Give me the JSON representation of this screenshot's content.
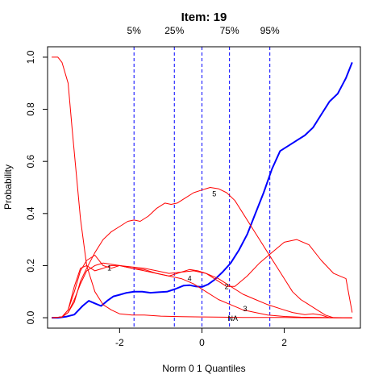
{
  "chart_data": {
    "type": "line",
    "title": "Item:  19",
    "xlabel": "Norm 0 1 Quantiles",
    "ylabel": "Probability",
    "xlim": [
      -3.75,
      3.85
    ],
    "ylim": [
      -0.04,
      1.04
    ],
    "xticks": [
      -2,
      0,
      2
    ],
    "xtick_labels": [
      "-2",
      "0",
      "2"
    ],
    "yticks": [
      0.0,
      0.2,
      0.4,
      0.6,
      0.8,
      1.0
    ],
    "ytick_labels": [
      "0.0",
      "0.2",
      "0.4",
      "0.6",
      "0.8",
      "1.0"
    ],
    "grid": false,
    "quantile_lines": [
      {
        "label": "5%",
        "x": -1.65
      },
      {
        "label": "25%",
        "x": -0.67
      },
      {
        "label": "",
        "x": 0.0
      },
      {
        "label": "75%",
        "x": 0.67
      },
      {
        "label": "95%",
        "x": 1.65
      }
    ],
    "colors": {
      "correct": "#0000ff",
      "distractor": "#ff0000",
      "quantile": "#0000ff"
    },
    "series": [
      {
        "label": "",
        "kind": "correct",
        "x": [
          -3.65,
          -3.5,
          -3.3,
          -3.1,
          -2.9,
          -2.75,
          -2.6,
          -2.45,
          -2.3,
          -2.15,
          -2.0,
          -1.85,
          -1.65,
          -1.45,
          -1.25,
          -1.05,
          -0.85,
          -0.65,
          -0.45,
          -0.3,
          -0.15,
          0.0,
          0.15,
          0.3,
          0.5,
          0.7,
          0.9,
          1.1,
          1.3,
          1.5,
          1.7,
          1.9,
          2.1,
          2.3,
          2.5,
          2.7,
          2.9,
          3.1,
          3.3,
          3.5,
          3.65
        ],
        "y": [
          0.0,
          0.0,
          0.004,
          0.012,
          0.045,
          0.065,
          0.055,
          0.045,
          0.065,
          0.082,
          0.088,
          0.095,
          0.1,
          0.1,
          0.096,
          0.098,
          0.1,
          0.11,
          0.123,
          0.125,
          0.12,
          0.118,
          0.128,
          0.145,
          0.175,
          0.21,
          0.26,
          0.32,
          0.4,
          0.48,
          0.57,
          0.64,
          0.66,
          0.68,
          0.7,
          0.73,
          0.78,
          0.83,
          0.86,
          0.92,
          0.98
        ]
      },
      {
        "label": "",
        "kind": "distractor",
        "x": [
          -3.65,
          -3.5,
          -3.4,
          -3.25,
          -3.15,
          -3.05,
          -2.95,
          -2.8,
          -2.6,
          -2.4,
          -2.2,
          -2.0,
          -1.7,
          -1.4,
          -1.0,
          -0.5,
          0.0,
          0.5,
          1.0,
          1.5,
          2.0,
          2.5,
          3.0,
          3.65
        ],
        "y": [
          1.0,
          1.0,
          0.98,
          0.9,
          0.72,
          0.55,
          0.38,
          0.2,
          0.1,
          0.05,
          0.03,
          0.015,
          0.01,
          0.01,
          0.006,
          0.004,
          0.003,
          0.002,
          0.001,
          0.001,
          0.001,
          0.0,
          0.0,
          0.0
        ]
      },
      {
        "label": "1",
        "kind": "distractor",
        "x": [
          -3.65,
          -3.4,
          -3.25,
          -3.1,
          -2.95,
          -2.8,
          -2.6,
          -2.4,
          -2.2,
          -2.0,
          -1.7,
          -1.4,
          -1.1,
          -0.8,
          -0.5,
          -0.2,
          0.1,
          0.4,
          0.7,
          1.0,
          1.3,
          1.6,
          2.0,
          2.4,
          3.0,
          3.65
        ],
        "y": [
          0.0,
          0.003,
          0.03,
          0.1,
          0.18,
          0.22,
          0.24,
          0.2,
          0.19,
          0.2,
          0.19,
          0.18,
          0.17,
          0.16,
          0.15,
          0.13,
          0.1,
          0.07,
          0.05,
          0.03,
          0.02,
          0.01,
          0.005,
          0.002,
          0.001,
          0.0
        ]
      },
      {
        "label": "2",
        "kind": "distractor",
        "x": [
          -3.65,
          -3.4,
          -3.25,
          -3.1,
          -2.95,
          -2.8,
          -2.6,
          -2.4,
          -2.2,
          -2.0,
          -1.7,
          -1.4,
          -1.1,
          -0.8,
          -0.5,
          -0.3,
          -0.1,
          0.1,
          0.3,
          0.6,
          0.8,
          1.1,
          1.4,
          1.7,
          2.0,
          2.3,
          2.6,
          2.9,
          3.2,
          3.5,
          3.65
        ],
        "y": [
          0.0,
          0.003,
          0.03,
          0.12,
          0.19,
          0.2,
          0.18,
          0.19,
          0.2,
          0.2,
          0.19,
          0.185,
          0.17,
          0.16,
          0.175,
          0.185,
          0.18,
          0.17,
          0.15,
          0.12,
          0.12,
          0.16,
          0.21,
          0.25,
          0.29,
          0.3,
          0.28,
          0.22,
          0.17,
          0.15,
          0.02
        ]
      },
      {
        "label": "3",
        "kind": "distractor",
        "x": [
          -3.65,
          -3.4,
          -3.25,
          -3.1,
          -2.95,
          -2.8,
          -2.6,
          -2.4,
          -2.2,
          -2.0,
          -1.7,
          -1.4,
          -1.1,
          -0.8,
          -0.5,
          -0.2,
          0.1,
          0.4,
          0.7,
          1.0,
          1.3,
          1.6,
          1.9,
          2.2,
          2.5,
          2.7,
          2.9,
          3.1,
          3.3,
          3.5,
          3.65
        ],
        "y": [
          0.0,
          0.003,
          0.02,
          0.07,
          0.13,
          0.18,
          0.2,
          0.21,
          0.205,
          0.2,
          0.195,
          0.19,
          0.18,
          0.17,
          0.175,
          0.18,
          0.17,
          0.15,
          0.12,
          0.09,
          0.07,
          0.05,
          0.035,
          0.02,
          0.012,
          0.015,
          0.01,
          0.0,
          0.0,
          0.0,
          0.0
        ]
      },
      {
        "label": "4",
        "kind": "distractor",
        "x": [
          -3.65,
          -3.4,
          -3.25,
          -3.1,
          -2.95,
          -2.8,
          -2.6,
          -2.4,
          -2.2,
          -2.0,
          -1.8,
          -1.65,
          -1.5,
          -1.3,
          -1.1,
          -0.9,
          -0.75,
          -0.6,
          -0.4,
          -0.2,
          0.0,
          0.2,
          0.4,
          0.6,
          0.8,
          1.0,
          1.2,
          1.4,
          1.6,
          1.8,
          2.0,
          2.2,
          2.4,
          2.6,
          2.8,
          3.0,
          3.2,
          3.65
        ],
        "y": [
          0.0,
          0.003,
          0.02,
          0.06,
          0.14,
          0.19,
          0.25,
          0.3,
          0.33,
          0.35,
          0.37,
          0.375,
          0.37,
          0.39,
          0.42,
          0.44,
          0.435,
          0.44,
          0.46,
          0.48,
          0.49,
          0.5,
          0.495,
          0.48,
          0.45,
          0.4,
          0.35,
          0.3,
          0.25,
          0.2,
          0.15,
          0.1,
          0.07,
          0.05,
          0.03,
          0.01,
          0.0,
          0.0
        ]
      }
    ],
    "curve_labels": [
      {
        "text": "1",
        "x": -2.25,
        "y": 0.19
      },
      {
        "text": "4",
        "x": -0.3,
        "y": 0.15
      },
      {
        "text": "2",
        "x": 0.6,
        "y": 0.12
      },
      {
        "text": "3",
        "x": 1.05,
        "y": 0.035
      },
      {
        "text": "NA",
        "x": 0.75,
        "y": -0.003
      },
      {
        "text": "5",
        "x": 0.3,
        "y": 0.475
      }
    ]
  }
}
